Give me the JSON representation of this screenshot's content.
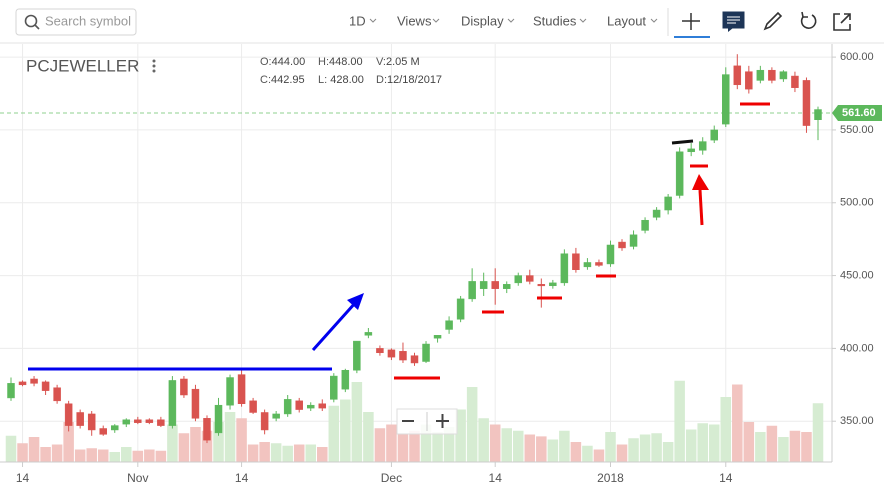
{
  "toolbar": {
    "search": "Search symbol",
    "interval": "1D",
    "menus": [
      "Views",
      "Display",
      "Studies",
      "Layout"
    ]
  },
  "chart_data": {
    "type": "candlestick",
    "title": "PCJEWELLER",
    "info": [
      {
        "key": "O:",
        "value": "444.00"
      },
      {
        "key": "H:",
        "value": "448.00"
      },
      {
        "key": "V:",
        "value": "2.05 M"
      },
      {
        "key": "C:",
        "value": "442.95"
      },
      {
        "key": "L: ",
        "value": "428.00"
      },
      {
        "key": "D:",
        "value": "12/18/2017"
      }
    ],
    "categories": [
      null,
      "14",
      null,
      null,
      null,
      null,
      null,
      null,
      null,
      null,
      null,
      "Nov",
      null,
      null,
      null,
      null,
      null,
      null,
      null,
      null,
      "14",
      null,
      null,
      null,
      null,
      null,
      null,
      null,
      null,
      null,
      null,
      null,
      null,
      "Dec",
      null,
      null,
      null,
      null,
      null,
      null,
      null,
      null,
      "14",
      null,
      null,
      null,
      null,
      null,
      null,
      null,
      null,
      null,
      "2018",
      null,
      null,
      null,
      null,
      null,
      null,
      null,
      null,
      null,
      "14",
      null,
      null,
      null,
      null,
      null,
      null,
      null,
      null
    ],
    "open": [
      366,
      377,
      379,
      377,
      373,
      362,
      356,
      355,
      345,
      344,
      348,
      351,
      351,
      351,
      347,
      379,
      372,
      352,
      342,
      361,
      382,
      364,
      356,
      352,
      355,
      364,
      359,
      362,
      365,
      372,
      385,
      409,
      400,
      399,
      398,
      395,
      391,
      407,
      413,
      420,
      434,
      441,
      446,
      441,
      445,
      450,
      444,
      443,
      445,
      465,
      456,
      459,
      458,
      473,
      470,
      481,
      490,
      495,
      505,
      535,
      536,
      543,
      554,
      594,
      590,
      584,
      591,
      585,
      587,
      584,
      557
    ],
    "high": [
      380,
      378,
      381,
      378,
      375,
      364,
      358,
      357,
      347,
      348,
      352,
      353,
      352,
      353,
      381,
      381,
      375,
      354,
      366,
      382,
      386,
      366,
      358,
      357,
      368,
      366,
      363,
      365,
      383,
      386,
      405,
      414,
      402,
      400,
      404,
      397,
      405,
      409,
      422,
      436,
      455,
      452,
      455,
      446,
      452,
      454,
      448,
      447,
      468,
      469,
      462,
      461,
      474,
      475,
      481,
      490,
      497,
      506,
      538,
      541,
      545,
      553,
      593,
      602,
      594,
      594,
      593,
      591,
      590,
      586,
      566
    ],
    "low": [
      364,
      374,
      374,
      368,
      362,
      343,
      345,
      340,
      340,
      342,
      346,
      348,
      348,
      346,
      345,
      366,
      350,
      335,
      340,
      358,
      360,
      355,
      341,
      350,
      353,
      356,
      357,
      357,
      363,
      370,
      383,
      407,
      395,
      392,
      390,
      388,
      390,
      404,
      410,
      418,
      432,
      436,
      430,
      438,
      443,
      444,
      428,
      441,
      443,
      452,
      454,
      456,
      456,
      467,
      468,
      479,
      488,
      492,
      503,
      532,
      533,
      541,
      552,
      578,
      575,
      582,
      582,
      583,
      576,
      548,
      543
    ],
    "close": [
      376,
      375,
      376,
      371,
      364,
      347,
      347,
      344,
      341,
      347,
      351,
      349,
      349,
      347,
      378,
      368,
      352,
      337,
      361,
      380,
      362,
      356,
      344,
      355,
      365,
      358,
      361,
      359,
      381,
      385,
      405,
      411,
      397,
      394,
      392,
      390,
      403,
      409,
      419,
      434,
      446,
      446,
      441,
      444,
      450,
      446,
      442.95,
      445,
      465,
      454,
      459,
      457,
      471,
      469,
      478,
      488,
      495,
      504,
      535,
      537,
      542,
      550,
      588,
      581,
      578,
      591,
      584,
      590,
      579,
      553,
      564
    ],
    "volume": [
      2.1,
      1.5,
      2.0,
      1.2,
      1.4,
      3.2,
      1.0,
      1.1,
      1.0,
      0.8,
      1.2,
      0.9,
      1.0,
      0.9,
      3.0,
      2.3,
      2.8,
      2.5,
      3.2,
      4.0,
      3.5,
      1.4,
      1.6,
      1.5,
      1.3,
      1.4,
      1.4,
      1.2,
      4.5,
      5.0,
      6.4,
      4.0,
      2.7,
      3.0,
      2.2,
      2.5,
      3.0,
      2.4,
      2.8,
      4.2,
      6.0,
      3.5,
      3.0,
      2.7,
      2.5,
      2.2,
      2.05,
      1.8,
      2.5,
      1.6,
      1.3,
      1.0,
      2.4,
      1.4,
      1.9,
      2.2,
      2.3,
      1.6,
      6.5,
      2.6,
      3.1,
      3.0,
      5.2,
      6.2,
      3.2,
      2.4,
      2.9,
      2.0,
      2.5,
      2.4,
      4.7
    ],
    "volume_lim": [
      0,
      8
    ],
    "ylim": [
      322,
      609
    ],
    "yticks": [
      {
        "value": 350,
        "label": "350.00"
      },
      {
        "value": 400,
        "label": "400.00"
      },
      {
        "value": 450,
        "label": "450.00"
      },
      {
        "value": 500,
        "label": "500.00"
      },
      {
        "value": 550,
        "label": "550.00"
      },
      {
        "value": 600,
        "label": "600.00"
      }
    ],
    "last_price": {
      "value": 561.6,
      "label": "561.60"
    },
    "up_color": "#5cb85c",
    "down_color": "#d9534f",
    "up_volume_color": "#d6ecd2",
    "down_volume_color": "#f2c4c0",
    "grid": true
  }
}
